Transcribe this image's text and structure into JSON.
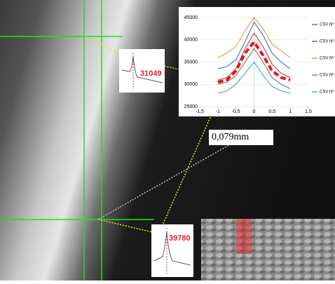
{
  "chart_data": {
    "type": "line",
    "x": [
      -1,
      -0.75,
      -0.5,
      -0.25,
      0,
      0.25,
      0.5,
      0.75,
      1
    ],
    "xlim": [
      -1.5,
      1.5
    ],
    "xticks": [
      {
        "value": -1.5,
        "label": "-1,5"
      },
      -1,
      {
        "value": -0.5,
        "label": "-0,5"
      },
      0,
      {
        "value": 0.5,
        "label": "0,5"
      },
      1,
      {
        "value": 1.5,
        "label": "1,5"
      }
    ],
    "ylim": [
      25000,
      45000
    ],
    "yticks": [
      25000,
      30000,
      35000,
      40000,
      45000
    ],
    "series": [
      {
        "name": "CSV Nº",
        "color": "#4a7ebb",
        "values": [
          33500,
          34000,
          35500,
          39500,
          44000,
          41000,
          37000,
          35000,
          33500
        ]
      },
      {
        "name": "CSV Nº",
        "color": "#be4b48",
        "values": [
          31000,
          31500,
          33500,
          38000,
          41500,
          38500,
          34500,
          32500,
          31500
        ]
      },
      {
        "name": "CSV Nº",
        "color": "#f79646",
        "values": [
          36000,
          37000,
          38500,
          42000,
          45000,
          42500,
          39000,
          37500,
          36000
        ]
      },
      {
        "name": "CSV Nº",
        "color": "#7f7f7f",
        "values": [
          30000,
          30500,
          32000,
          35000,
          38000,
          35000,
          31500,
          30000,
          29000
        ]
      },
      {
        "name": "CSV Nº",
        "color": "#4bacc6",
        "values": [
          28000,
          28500,
          30000,
          32500,
          35000,
          32000,
          29500,
          28500,
          28000
        ]
      },
      {
        "color": "#e8151b",
        "dashed": true,
        "values": [
          30500,
          31000,
          33000,
          37000,
          39500,
          36500,
          33000,
          31500,
          31000
        ]
      }
    ]
  },
  "annotations": {
    "peak_top": "31049",
    "peak_bottom": "39780",
    "distance": "0,079mm"
  }
}
